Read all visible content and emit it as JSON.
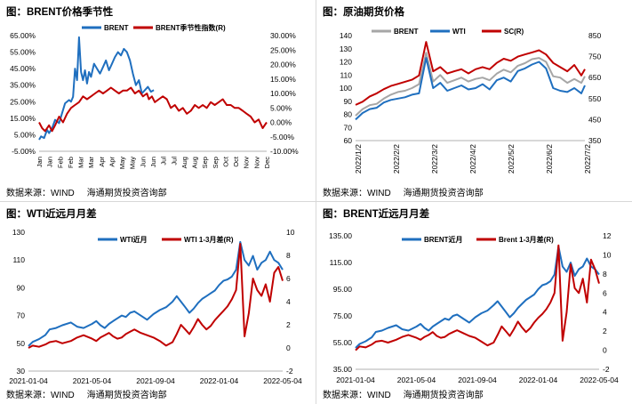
{
  "panels": [
    {
      "id": "brent-seasonal",
      "title": "图：BRENT价格季节性",
      "source_label": "数据来源：WIND",
      "source_org": "海通期货投资咨询部"
    },
    {
      "id": "crude-futures",
      "title": "图：原油期货价格",
      "source_label": "数据来源：WIND",
      "source_org": "海通期货投资咨询部"
    },
    {
      "id": "wti-spread",
      "title": "图：WTI近远月月差",
      "source_label": "数据来源：WIND",
      "source_org": "海通期货投资咨询部"
    },
    {
      "id": "brent-spread",
      "title": "图：BRENT近远月月差",
      "source_label": "数据来源：WIND",
      "source_org": "海通期货投资咨询部"
    }
  ],
  "colors": {
    "blue": "#1f6fbf",
    "red": "#c00000",
    "gray": "#a6a6a6",
    "axis": "#999999"
  },
  "chart_data": [
    {
      "type": "line",
      "title": "图：BRENT价格季节性",
      "x_tick_labels": [
        "Jan",
        "Jan",
        "Feb",
        "Feb",
        "Mar",
        "Mar",
        "Apr",
        "Apr",
        "May",
        "May",
        "Jun",
        "Jun",
        "Jul",
        "Jul",
        "Aug",
        "Aug",
        "Sep",
        "Sep",
        "Oct",
        "Oct",
        "Nov",
        "Nov",
        "Dec"
      ],
      "ylim_left": [
        -5,
        65
      ],
      "yticks_left": [
        "65.00%",
        "55.00%",
        "45.00%",
        "35.00%",
        "25.00%",
        "15.00%",
        "5.00%",
        "-5.00%"
      ],
      "ylim_right": [
        -10,
        30
      ],
      "yticks_right": [
        "30.00%",
        "25.00%",
        "20.00%",
        "15.00%",
        "10.00%",
        "5.00%",
        "0.00%",
        "-5.00%",
        "-10.00%"
      ],
      "series": [
        {
          "name": "BRENT",
          "axis": "left",
          "color": "#1f6fbf",
          "x": [
            0,
            0.2,
            0.5,
            0.8,
            1.0,
            1.3,
            1.6,
            2.0,
            2.3,
            2.6,
            3.0,
            3.2,
            3.4,
            3.6,
            3.8,
            4.0,
            4.2,
            4.4,
            4.6,
            4.8,
            5.0,
            5.2,
            5.5,
            5.8,
            6.1,
            6.4,
            6.7,
            7.0,
            7.3,
            7.6,
            7.9,
            8.2,
            8.5,
            8.8,
            9.1,
            9.4,
            9.7,
            10.0,
            10.3,
            10.6,
            10.9,
            11.2,
            11.5
          ],
          "values": [
            2,
            4,
            3,
            8,
            6,
            9,
            14,
            12,
            18,
            24,
            26,
            25,
            28,
            45,
            38,
            64,
            43,
            38,
            44,
            36,
            43,
            40,
            48,
            45,
            42,
            46,
            50,
            44,
            48,
            52,
            55,
            53,
            57,
            55,
            50,
            42,
            35,
            38,
            30,
            32,
            34,
            31,
            32
          ]
        },
        {
          "name": "BRENT季节性指数(R)",
          "axis": "right",
          "color": "#c00000",
          "x": [
            0,
            0.3,
            0.6,
            1.0,
            1.3,
            1.6,
            2.0,
            2.4,
            2.8,
            3.2,
            3.6,
            4.0,
            4.4,
            4.8,
            5.2,
            5.6,
            6.0,
            6.4,
            6.8,
            7.2,
            7.6,
            8.0,
            8.4,
            8.8,
            9.2,
            9.6,
            10.0,
            10.4,
            10.8,
            11.0,
            11.3,
            11.6,
            12.0,
            12.4,
            12.8,
            13.2,
            13.6,
            14.0,
            14.4,
            14.8,
            15.2,
            15.6,
            16.0,
            16.4,
            16.8,
            17.2,
            17.6,
            18.0,
            18.4,
            18.8,
            19.2,
            19.6,
            20.0,
            20.4,
            20.8,
            21.2,
            21.6,
            22.0,
            22.4,
            22.8
          ],
          "values": [
            0,
            -2,
            -3,
            -1,
            -3,
            -1,
            2,
            0,
            3,
            5,
            6,
            7,
            9,
            8,
            9,
            10,
            11,
            10,
            11,
            12,
            11,
            10,
            11,
            11,
            12,
            10,
            11,
            9,
            10,
            8,
            9,
            7,
            8,
            9,
            8,
            5,
            6,
            4,
            5,
            3,
            4,
            6,
            5,
            6,
            5,
            7,
            6,
            7,
            8,
            6,
            6,
            5,
            5,
            4,
            3,
            2,
            0,
            1,
            -2,
            0
          ]
        }
      ]
    },
    {
      "type": "line",
      "title": "图：原油期货价格",
      "x_tick_labels": [
        "2022/1/2",
        "2022/2/2",
        "2022/3/2",
        "2022/4/2",
        "2022/5/2",
        "2022/6/2",
        "2022/7/2"
      ],
      "ylim_left": [
        60,
        140
      ],
      "yticks_left": [
        "140",
        "130",
        "120",
        "110",
        "100",
        "90",
        "80",
        "70",
        "60"
      ],
      "ylim_right": [
        350,
        850
      ],
      "yticks_right": [
        "850",
        "750",
        "650",
        "550",
        "450",
        "350"
      ],
      "series": [
        {
          "name": "BRENT",
          "axis": "left",
          "color": "#a6a6a6",
          "x": [
            0,
            4,
            8,
            12,
            16,
            20,
            24,
            28,
            32,
            36,
            40,
            44,
            48,
            52,
            56,
            60,
            64,
            68,
            72,
            76,
            80,
            84,
            88,
            92,
            96,
            100,
            104,
            108,
            112,
            116,
            120,
            124,
            128,
            130
          ],
          "values": [
            79,
            84,
            87,
            88,
            92,
            95,
            97,
            98,
            100,
            103,
            127,
            105,
            110,
            104,
            106,
            108,
            105,
            107,
            108,
            106,
            111,
            114,
            112,
            117,
            119,
            122,
            123,
            120,
            109,
            108,
            104,
            107,
            104,
            109
          ]
        },
        {
          "name": "WTI",
          "axis": "left",
          "color": "#1f6fbf",
          "x": [
            0,
            4,
            8,
            12,
            16,
            20,
            24,
            28,
            32,
            36,
            40,
            44,
            48,
            52,
            56,
            60,
            64,
            68,
            72,
            76,
            80,
            84,
            88,
            92,
            96,
            100,
            104,
            108,
            112,
            116,
            120,
            124,
            128,
            130
          ],
          "values": [
            76,
            81,
            84,
            85,
            89,
            91,
            92,
            93,
            95,
            96,
            123,
            100,
            104,
            98,
            100,
            102,
            99,
            100,
            103,
            99,
            106,
            108,
            105,
            113,
            115,
            118,
            120,
            115,
            100,
            98,
            97,
            100,
            96,
            102
          ]
        },
        {
          "name": "SC(R)",
          "axis": "right",
          "color": "#c00000",
          "x": [
            0,
            4,
            8,
            12,
            16,
            20,
            24,
            28,
            32,
            36,
            40,
            44,
            48,
            52,
            56,
            60,
            64,
            68,
            72,
            76,
            80,
            84,
            88,
            92,
            96,
            100,
            104,
            108,
            112,
            116,
            120,
            124,
            128,
            130
          ],
          "values": [
            520,
            535,
            560,
            575,
            595,
            610,
            620,
            630,
            640,
            660,
            820,
            680,
            700,
            670,
            680,
            690,
            670,
            690,
            700,
            690,
            720,
            740,
            730,
            750,
            760,
            770,
            780,
            760,
            720,
            700,
            680,
            710,
            660,
            690
          ]
        }
      ]
    },
    {
      "type": "line",
      "title": "图：WTI近远月月差",
      "x_tick_labels": [
        "2021-01-04",
        "2021-05-04",
        "2021-09-04",
        "2022-01-04",
        "2022-05-04"
      ],
      "ylim_left": [
        30,
        130
      ],
      "yticks_left": [
        "130",
        "110",
        "90",
        "70",
        "50",
        "30"
      ],
      "ylim_right": [
        -2,
        10
      ],
      "yticks_right": [
        "10",
        "8",
        "6",
        "4",
        "2",
        "0",
        "-2"
      ],
      "series": [
        {
          "name": "WTI近月",
          "axis": "left",
          "color": "#1f6fbf",
          "x": [
            0,
            0.2,
            0.5,
            0.8,
            1.0,
            1.3,
            1.6,
            2.0,
            2.3,
            2.6,
            3.0,
            3.2,
            3.4,
            3.6,
            3.8,
            4.0,
            4.2,
            4.4,
            4.6,
            4.8,
            5.0,
            5.3,
            5.6,
            5.9,
            6.2,
            6.5,
            6.8,
            7.0,
            7.2,
            7.4,
            7.6,
            7.8,
            8.0,
            8.2,
            8.4,
            8.6,
            8.8,
            9.0,
            9.2,
            9.4,
            9.6,
            9.8,
            10.0,
            10.2,
            10.4,
            10.6,
            10.8,
            11.0,
            11.2,
            11.4,
            11.6,
            11.8,
            12.0
          ],
          "values": [
            48,
            51,
            53,
            56,
            60,
            61,
            63,
            65,
            62,
            61,
            64,
            66,
            63,
            61,
            64,
            66,
            68,
            70,
            69,
            72,
            73,
            70,
            67,
            71,
            74,
            76,
            80,
            84,
            80,
            76,
            72,
            75,
            79,
            82,
            84,
            86,
            88,
            92,
            95,
            96,
            98,
            103,
            123,
            110,
            106,
            113,
            103,
            108,
            110,
            116,
            110,
            108,
            103
          ]
        },
        {
          "name": "WTI 1-3月差(R)",
          "axis": "right",
          "color": "#c00000",
          "x": [
            0,
            0.2,
            0.5,
            0.8,
            1.0,
            1.3,
            1.6,
            2.0,
            2.3,
            2.6,
            3.0,
            3.2,
            3.4,
            3.6,
            3.8,
            4.0,
            4.2,
            4.4,
            4.6,
            4.8,
            5.0,
            5.3,
            5.6,
            5.9,
            6.2,
            6.5,
            6.8,
            7.0,
            7.2,
            7.4,
            7.6,
            7.8,
            8.0,
            8.2,
            8.4,
            8.6,
            8.8,
            9.0,
            9.2,
            9.4,
            9.6,
            9.8,
            10.0,
            10.2,
            10.4,
            10.6,
            10.8,
            11.0,
            11.2,
            11.4,
            11.6,
            11.8,
            12.0
          ],
          "values": [
            0,
            0.2,
            0.1,
            0.3,
            0.5,
            0.6,
            0.4,
            0.6,
            0.9,
            1.1,
            0.8,
            0.6,
            0.9,
            1.1,
            1.3,
            1.0,
            0.8,
            0.9,
            1.2,
            1.4,
            1.6,
            1.3,
            1.1,
            0.9,
            0.6,
            0.2,
            0.5,
            1.2,
            2.0,
            1.6,
            1.2,
            1.8,
            2.5,
            2.0,
            1.6,
            1.9,
            2.4,
            2.8,
            3.2,
            3.6,
            4.2,
            5.0,
            9.0,
            1.0,
            3.0,
            6.0,
            5.0,
            4.5,
            5.5,
            4.0,
            6.5,
            7.0,
            5.8
          ]
        }
      ]
    },
    {
      "type": "line",
      "title": "图：BRENT近远月月差",
      "x_tick_labels": [
        "2021-01-04",
        "2021-05-04",
        "2021-09-04",
        "2022-01-04",
        "2022-05-04"
      ],
      "ylim_left": [
        35,
        135
      ],
      "yticks_left": [
        "135.00",
        "115.00",
        "95.00",
        "75.00",
        "55.00",
        "35.00"
      ],
      "ylim_right": [
        -2,
        12
      ],
      "yticks_right": [
        "12",
        "10",
        "8",
        "6",
        "4",
        "2",
        "0",
        "-2"
      ],
      "series": [
        {
          "name": "BRENT近月",
          "axis": "left",
          "color": "#1f6fbf",
          "x": [
            0,
            0.2,
            0.5,
            0.8,
            1.0,
            1.3,
            1.6,
            2.0,
            2.3,
            2.6,
            3.0,
            3.2,
            3.4,
            3.6,
            3.8,
            4.0,
            4.2,
            4.4,
            4.6,
            4.8,
            5.0,
            5.3,
            5.6,
            5.9,
            6.2,
            6.5,
            6.8,
            7.0,
            7.2,
            7.4,
            7.6,
            7.8,
            8.0,
            8.2,
            8.4,
            8.6,
            8.8,
            9.0,
            9.2,
            9.4,
            9.6,
            9.8,
            10.0,
            10.2,
            10.4,
            10.6,
            10.8,
            11.0,
            11.2,
            11.4,
            11.6,
            11.8,
            12.0
          ],
          "values": [
            51,
            54,
            56,
            59,
            63,
            64,
            66,
            68,
            65,
            64,
            67,
            69,
            66,
            64,
            67,
            69,
            71,
            73,
            72,
            75,
            76,
            73,
            70,
            74,
            77,
            79,
            83,
            86,
            82,
            78,
            74,
            77,
            81,
            84,
            87,
            89,
            91,
            95,
            98,
            99,
            101,
            106,
            127,
            112,
            108,
            115,
            105,
            110,
            112,
            118,
            112,
            110,
            106
          ]
        },
        {
          "name": "Brent 1-3月差(R)",
          "axis": "right",
          "color": "#c00000",
          "x": [
            0,
            0.2,
            0.5,
            0.8,
            1.0,
            1.3,
            1.6,
            2.0,
            2.3,
            2.6,
            3.0,
            3.2,
            3.4,
            3.6,
            3.8,
            4.0,
            4.2,
            4.4,
            4.6,
            4.8,
            5.0,
            5.3,
            5.6,
            5.9,
            6.2,
            6.5,
            6.8,
            7.0,
            7.2,
            7.4,
            7.6,
            7.8,
            8.0,
            8.2,
            8.4,
            8.6,
            8.8,
            9.0,
            9.2,
            9.4,
            9.6,
            9.8,
            10.0,
            10.2,
            10.4,
            10.6,
            10.8,
            11.0,
            11.2,
            11.4,
            11.6,
            11.8,
            12.0
          ],
          "values": [
            0,
            0.4,
            0.3,
            0.6,
            0.9,
            1.0,
            0.8,
            1.1,
            1.4,
            1.6,
            1.3,
            1.1,
            1.4,
            1.6,
            1.9,
            1.5,
            1.3,
            1.4,
            1.7,
            1.9,
            2.1,
            1.8,
            1.5,
            1.3,
            0.9,
            0.5,
            0.8,
            1.6,
            2.5,
            2.0,
            1.5,
            2.2,
            3.0,
            2.4,
            1.9,
            2.3,
            2.9,
            3.4,
            3.8,
            4.3,
            5.0,
            6.0,
            11.0,
            1.0,
            4.0,
            9.0,
            6.5,
            6.0,
            7.5,
            5.0,
            9.5,
            8.5,
            7.0
          ]
        }
      ]
    }
  ]
}
